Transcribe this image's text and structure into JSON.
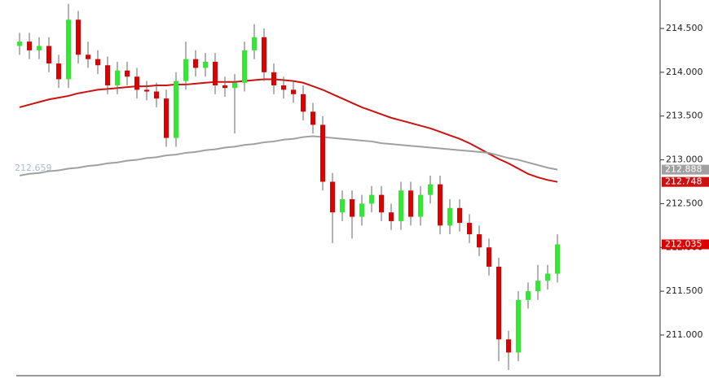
{
  "chart_data": {
    "type": "candlestick",
    "annotation": "212.659",
    "ylim": [
      210.554,
      214.825
    ],
    "yticks": [
      {
        "value": 211,
        "label": "211.000"
      },
      {
        "value": 211.5,
        "label": "211.500"
      },
      {
        "value": 212,
        "label": "212.000"
      },
      {
        "value": 212.5,
        "label": "212.500"
      },
      {
        "value": 213,
        "label": "213.000"
      },
      {
        "value": 213.5,
        "label": "213.500"
      },
      {
        "value": 214,
        "label": "214.000"
      },
      {
        "value": 214.5,
        "label": "214.500"
      }
    ],
    "up_color": "#33e833",
    "down_color": "#dd0000",
    "open": [
      214.3,
      214.35,
      214.25,
      214.3,
      214.1,
      213.92,
      214.6,
      214.2,
      214.15,
      214.08,
      213.85,
      214.02,
      213.95,
      213.8,
      213.78,
      213.7,
      213.25,
      213.9,
      214.15,
      214.05,
      214.12,
      213.85,
      213.82,
      213.88,
      214.25,
      214.4,
      214.0,
      213.85,
      213.8,
      213.75,
      213.55,
      213.4,
      212.75,
      212.4,
      212.55,
      212.35,
      212.5,
      212.6,
      212.4,
      212.3,
      212.65,
      212.35,
      212.6,
      212.72,
      212.25,
      212.45,
      212.28,
      212.15,
      212.0,
      211.78,
      210.95,
      210.8,
      211.4,
      211.5,
      211.62,
      211.7
    ],
    "high": [
      214.45,
      214.45,
      214.4,
      214.4,
      214.2,
      214.78,
      214.7,
      214.35,
      214.25,
      214.18,
      214.12,
      214.12,
      214.05,
      213.9,
      213.88,
      213.8,
      214.0,
      214.35,
      214.25,
      214.22,
      214.22,
      213.95,
      213.98,
      214.35,
      214.55,
      214.5,
      214.1,
      213.95,
      213.9,
      213.85,
      213.65,
      213.5,
      212.85,
      212.65,
      212.65,
      212.6,
      212.7,
      212.7,
      212.5,
      212.75,
      212.75,
      212.7,
      212.82,
      212.82,
      212.55,
      212.55,
      212.38,
      212.25,
      212.1,
      211.88,
      211.05,
      211.5,
      211.6,
      211.8,
      211.8,
      212.15
    ],
    "low": [
      214.2,
      214.15,
      214.15,
      214.0,
      213.82,
      213.82,
      214.1,
      214.05,
      213.98,
      213.75,
      213.75,
      213.85,
      213.7,
      213.68,
      213.6,
      213.15,
      213.15,
      213.8,
      213.95,
      213.95,
      213.75,
      213.72,
      213.3,
      213.78,
      214.15,
      213.9,
      213.75,
      213.7,
      213.65,
      213.45,
      213.3,
      212.65,
      212.05,
      212.3,
      212.1,
      212.25,
      212.4,
      212.3,
      212.2,
      212.2,
      212.25,
      212.25,
      212.5,
      212.15,
      212.15,
      212.18,
      212.05,
      211.9,
      211.68,
      210.7,
      210.6,
      210.7,
      211.3,
      211.4,
      211.52,
      211.6
    ],
    "close": [
      214.35,
      214.25,
      214.3,
      214.1,
      213.92,
      214.6,
      214.2,
      214.15,
      214.08,
      213.85,
      214.02,
      213.95,
      213.8,
      213.78,
      213.7,
      213.25,
      213.9,
      214.15,
      214.05,
      214.12,
      213.85,
      213.82,
      213.88,
      214.25,
      214.4,
      214.0,
      213.85,
      213.8,
      213.75,
      213.55,
      213.4,
      212.75,
      212.4,
      212.55,
      212.35,
      212.5,
      212.6,
      212.4,
      212.3,
      212.65,
      212.35,
      212.6,
      212.72,
      212.25,
      212.45,
      212.28,
      212.15,
      212.0,
      211.78,
      210.95,
      210.8,
      211.4,
      211.5,
      211.62,
      211.7,
      212.035
    ],
    "series": [
      {
        "color": "#cc1111",
        "values": [
          213.6,
          213.63,
          213.66,
          213.69,
          213.71,
          213.73,
          213.76,
          213.78,
          213.8,
          213.81,
          213.82,
          213.83,
          213.84,
          213.84,
          213.85,
          213.85,
          213.86,
          213.86,
          213.87,
          213.88,
          213.89,
          213.89,
          213.89,
          213.9,
          213.91,
          213.92,
          213.92,
          213.91,
          213.9,
          213.88,
          213.84,
          213.8,
          213.75,
          213.7,
          213.65,
          213.6,
          213.56,
          213.52,
          213.48,
          213.45,
          213.42,
          213.39,
          213.36,
          213.32,
          213.28,
          213.24,
          213.19,
          213.13,
          213.07,
          213.01,
          212.96,
          212.9,
          212.84,
          212.8,
          212.77,
          212.748
        ]
      },
      {
        "color": "#a0a0a0",
        "values": [
          212.82,
          212.84,
          212.85,
          212.87,
          212.88,
          212.9,
          212.91,
          212.93,
          212.94,
          212.96,
          212.97,
          212.99,
          213.0,
          213.02,
          213.03,
          213.05,
          213.06,
          213.08,
          213.09,
          213.11,
          213.12,
          213.14,
          213.15,
          213.17,
          213.18,
          213.2,
          213.21,
          213.23,
          213.24,
          213.26,
          213.27,
          213.26,
          213.25,
          213.24,
          213.23,
          213.22,
          213.21,
          213.19,
          213.18,
          213.17,
          213.16,
          213.15,
          213.14,
          213.13,
          213.12,
          213.11,
          213.1,
          213.09,
          213.08,
          213.05,
          213.02,
          213.0,
          212.97,
          212.94,
          212.91,
          212.888
        ]
      }
    ]
  }
}
